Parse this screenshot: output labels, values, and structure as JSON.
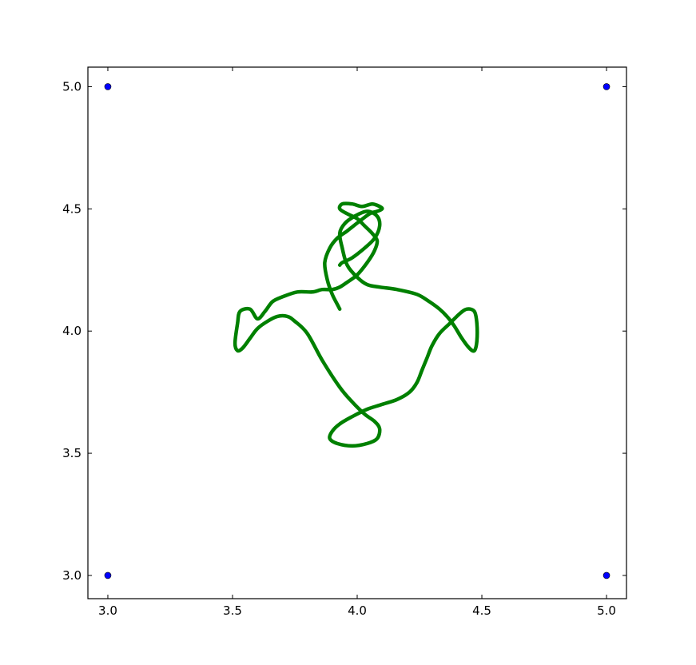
{
  "chart_data": {
    "type": "scatter",
    "title": "",
    "xlabel": "",
    "ylabel": "",
    "xlim": [
      2.92,
      5.08
    ],
    "ylim": [
      2.905,
      5.08
    ],
    "xticks": [
      {
        "value": 3.0,
        "label": "3.0"
      },
      {
        "value": 3.5,
        "label": "3.5"
      },
      {
        "value": 4.0,
        "label": "4.0"
      },
      {
        "value": 4.5,
        "label": "4.5"
      },
      {
        "value": 5.0,
        "label": "5.0"
      }
    ],
    "yticks": [
      {
        "value": 3.0,
        "label": "3.0"
      },
      {
        "value": 3.5,
        "label": "3.5"
      },
      {
        "value": 4.0,
        "label": "4.0"
      },
      {
        "value": 4.5,
        "label": "4.5"
      },
      {
        "value": 5.0,
        "label": "5.0"
      }
    ],
    "grid": false,
    "series": [
      {
        "style": "points",
        "color": "#0000ff",
        "x": [
          3.0,
          5.0,
          3.0,
          5.0
        ],
        "y": [
          5.0,
          5.0,
          3.0,
          3.0
        ]
      },
      {
        "style": "path",
        "color": "#008000",
        "x": [
          3.93,
          3.92,
          3.9,
          3.88,
          3.87,
          3.89,
          3.92,
          3.96,
          4.01,
          4.05,
          4.08,
          4.1,
          4.09,
          4.06,
          4.02,
          3.98,
          3.94,
          3.93,
          3.96,
          4.0,
          4.03,
          4.06,
          4.08,
          4.07,
          4.04,
          4.0,
          3.96,
          3.93,
          3.9,
          3.86,
          3.82,
          3.76,
          3.7,
          3.66,
          3.63,
          3.6,
          3.57,
          3.53,
          3.52,
          3.51,
          3.52,
          3.54,
          3.57,
          3.6,
          3.64,
          3.68,
          3.72,
          3.75,
          3.8,
          3.86,
          3.93,
          3.98,
          4.03,
          4.07,
          4.09,
          4.08,
          4.04,
          3.98,
          3.92,
          3.89,
          3.9,
          3.93,
          3.98,
          4.04,
          4.1,
          4.16,
          4.21,
          4.24,
          4.26,
          4.28,
          4.3,
          4.33,
          4.37,
          4.41,
          4.44,
          4.47,
          4.48,
          4.48,
          4.47,
          4.45,
          4.42,
          4.39,
          4.36,
          4.33,
          4.29,
          4.24,
          4.16,
          4.09,
          4.04,
          4.0,
          3.96,
          3.94,
          3.93,
          3.95,
          3.99,
          4.04,
          4.08,
          4.09,
          4.07,
          4.03,
          3.98,
          3.94,
          3.93
        ],
        "y": [
          4.09,
          4.11,
          4.15,
          4.21,
          4.28,
          4.34,
          4.38,
          4.41,
          4.45,
          4.48,
          4.49,
          4.5,
          4.51,
          4.52,
          4.51,
          4.52,
          4.52,
          4.5,
          4.48,
          4.46,
          4.43,
          4.4,
          4.37,
          4.33,
          4.28,
          4.23,
          4.2,
          4.18,
          4.17,
          4.17,
          4.16,
          4.16,
          4.14,
          4.12,
          4.08,
          4.05,
          4.09,
          4.08,
          4.03,
          3.95,
          3.92,
          3.93,
          3.97,
          4.01,
          4.04,
          4.06,
          4.06,
          4.04,
          3.99,
          3.88,
          3.77,
          3.71,
          3.66,
          3.63,
          3.6,
          3.56,
          3.54,
          3.53,
          3.54,
          3.56,
          3.59,
          3.62,
          3.65,
          3.68,
          3.7,
          3.72,
          3.75,
          3.79,
          3.84,
          3.89,
          3.94,
          3.99,
          4.03,
          4.07,
          4.09,
          4.08,
          4.03,
          3.96,
          3.92,
          3.93,
          3.97,
          4.02,
          4.06,
          4.09,
          4.12,
          4.15,
          4.17,
          4.18,
          4.19,
          4.22,
          4.27,
          4.34,
          4.4,
          4.44,
          4.47,
          4.49,
          4.47,
          4.43,
          4.38,
          4.34,
          4.3,
          4.28,
          4.27
        ]
      }
    ],
    "legend": "none"
  }
}
